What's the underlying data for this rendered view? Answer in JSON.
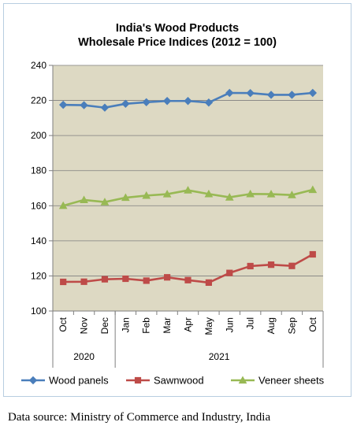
{
  "chart_data": {
    "type": "line",
    "title_lines": [
      "India's Wood Products",
      "Wholesale Price Indices (2012 = 100)"
    ],
    "categories": [
      "Oct",
      "Nov",
      "Dec",
      "Jan",
      "Feb",
      "Mar",
      "Apr",
      "May",
      "Jun",
      "Jul",
      "Aug",
      "Sep",
      "Oct"
    ],
    "year_groups": [
      {
        "label": "2020",
        "start": 0,
        "end": 2
      },
      {
        "label": "2021",
        "start": 3,
        "end": 12
      }
    ],
    "ylim": [
      100,
      240
    ],
    "yticks": [
      100,
      120,
      140,
      160,
      180,
      200,
      220,
      240
    ],
    "grid": true,
    "legend_position": "bottom",
    "plot_bg": "#ddd9c3",
    "series": [
      {
        "name": "Wood panels",
        "color": "#4a7ebb",
        "marker": "diamond",
        "values": [
          217.5,
          217.3,
          215.9,
          218.1,
          219.0,
          219.7,
          219.7,
          218.8,
          224.3,
          224.2,
          223.2,
          223.2,
          224.3
        ]
      },
      {
        "name": "Sawnwood",
        "color": "#be4b48",
        "marker": "square",
        "values": [
          116.6,
          116.7,
          118.1,
          118.4,
          117.3,
          119.2,
          117.6,
          116.2,
          121.7,
          125.6,
          126.4,
          125.7,
          132.3
        ]
      },
      {
        "name": "Veneer sheets",
        "color": "#98b954",
        "marker": "triangle",
        "values": [
          160.0,
          163.3,
          162.1,
          164.6,
          165.8,
          166.6,
          168.8,
          166.7,
          164.8,
          166.7,
          166.6,
          166.1,
          169.1
        ]
      }
    ]
  },
  "source": "Data source: Ministry of Commerce and Industry, India"
}
